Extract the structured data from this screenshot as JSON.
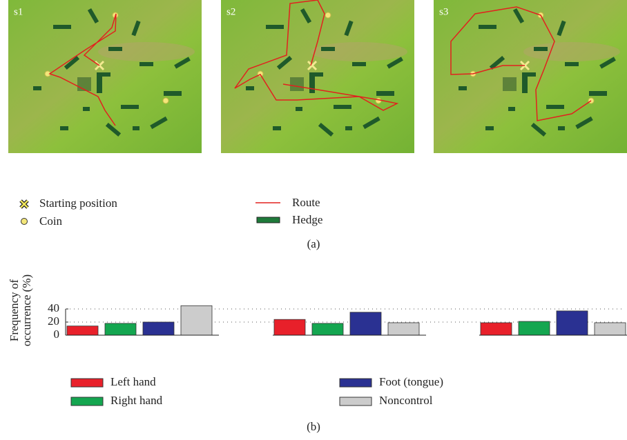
{
  "panel_a": {
    "maps": [
      "s1",
      "s2",
      "s3"
    ],
    "legend": [
      "Starting position",
      "Coin",
      "Route",
      "Hedge"
    ],
    "label": "(a)"
  },
  "chart_data": {
    "type": "bar",
    "ylabel": [
      "Frequency of",
      "occurrence (%)"
    ],
    "categories": [
      null,
      null,
      null
    ],
    "series": [
      {
        "name": "Left hand",
        "color": "#e8202a",
        "values": [
          14,
          24,
          19
        ]
      },
      {
        "name": "Right hand",
        "color": "#14a650",
        "values": [
          18,
          18,
          21
        ]
      },
      {
        "name": "Foot (tongue)",
        "color": "#2a3192",
        "values": [
          20,
          35,
          37
        ]
      },
      {
        "name": "Noncontrol",
        "color": "#cccccc",
        "values": [
          45,
          19,
          19
        ]
      }
    ],
    "ylim": [
      0,
      50
    ],
    "yticks": [
      0,
      20,
      40
    ],
    "grid": true
  },
  "panel_b_label": "(b)"
}
